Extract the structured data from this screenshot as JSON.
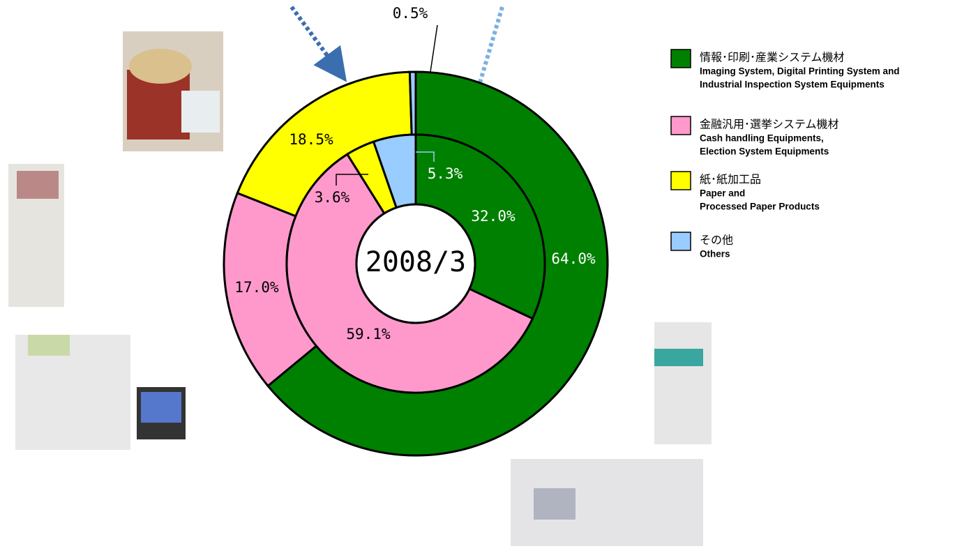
{
  "chart_data": {
    "type": "donut",
    "center_label": "2008/3",
    "categories": [
      {
        "ja": "情報･印刷･産業システム機材",
        "en": [
          "Imaging System, Digital Printing System and",
          "Industrial Inspection System Equipments"
        ]
      },
      {
        "ja": "金融汎用･選挙システム機材",
        "en": [
          "Cash handling Equipments,",
          "Election System Equipments"
        ]
      },
      {
        "ja": "紙･紙加工品",
        "en": [
          "Paper and",
          "Processed Paper Products"
        ]
      },
      {
        "ja": "その他",
        "en": [
          "Others"
        ]
      }
    ],
    "colors": [
      "#008000",
      "#ff99cc",
      "#ffff00",
      "#99ccff"
    ],
    "series": [
      {
        "values": [
          64.0,
          17.0,
          18.5,
          0.5
        ],
        "value_labels": [
          "64.0%",
          "17.0%",
          "18.5%",
          "0.5%"
        ]
      },
      {
        "values": [
          32.0,
          59.1,
          3.6,
          5.3
        ],
        "value_labels": [
          "32.0%",
          "59.1%",
          "3.6%",
          "5.3%"
        ]
      }
    ]
  }
}
